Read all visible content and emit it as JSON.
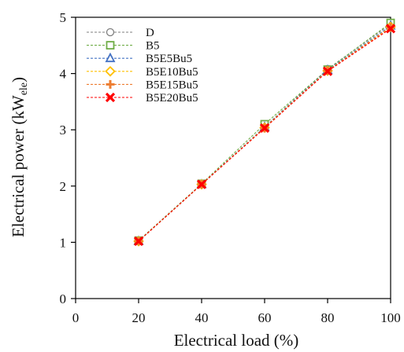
{
  "chart_data": {
    "type": "line",
    "title": "",
    "xlabel": "Electrical load (%)",
    "ylabel": {
      "main": "Electrical power (kW",
      "subscript": "ele",
      "close": ")"
    },
    "xlim": [
      0,
      100
    ],
    "ylim": [
      0,
      5
    ],
    "xticks": [
      "0",
      "20",
      "40",
      "60",
      "80",
      "100"
    ],
    "yticks": [
      "0",
      "1",
      "2",
      "3",
      "4",
      "5"
    ],
    "grid": false,
    "legend_position": "top-left",
    "x": [
      20,
      40,
      60,
      80,
      100
    ],
    "series": [
      {
        "name": "D",
        "marker": "circle-open",
        "color": "#7f7f7f",
        "values": [
          1.02,
          2.03,
          3.05,
          4.08,
          4.88
        ]
      },
      {
        "name": "B5",
        "marker": "square-open",
        "color": "#70ad47",
        "values": [
          1.03,
          2.04,
          3.1,
          4.07,
          4.9
        ]
      },
      {
        "name": "B5E5Bu5",
        "marker": "triangle-open",
        "color": "#4472c4",
        "values": [
          1.02,
          2.03,
          3.05,
          4.06,
          4.85
        ]
      },
      {
        "name": "B5E10Bu5",
        "marker": "diamond-open",
        "color": "#ffc000",
        "values": [
          1.02,
          2.03,
          3.04,
          4.05,
          4.83
        ]
      },
      {
        "name": "B5E15Bu5",
        "marker": "plus",
        "color": "#ed7d31",
        "values": [
          1.02,
          2.03,
          3.03,
          4.05,
          4.82
        ]
      },
      {
        "name": "B5E20Bu5",
        "marker": "x",
        "color": "#ff0000",
        "values": [
          1.02,
          2.03,
          3.03,
          4.04,
          4.8
        ]
      }
    ]
  }
}
